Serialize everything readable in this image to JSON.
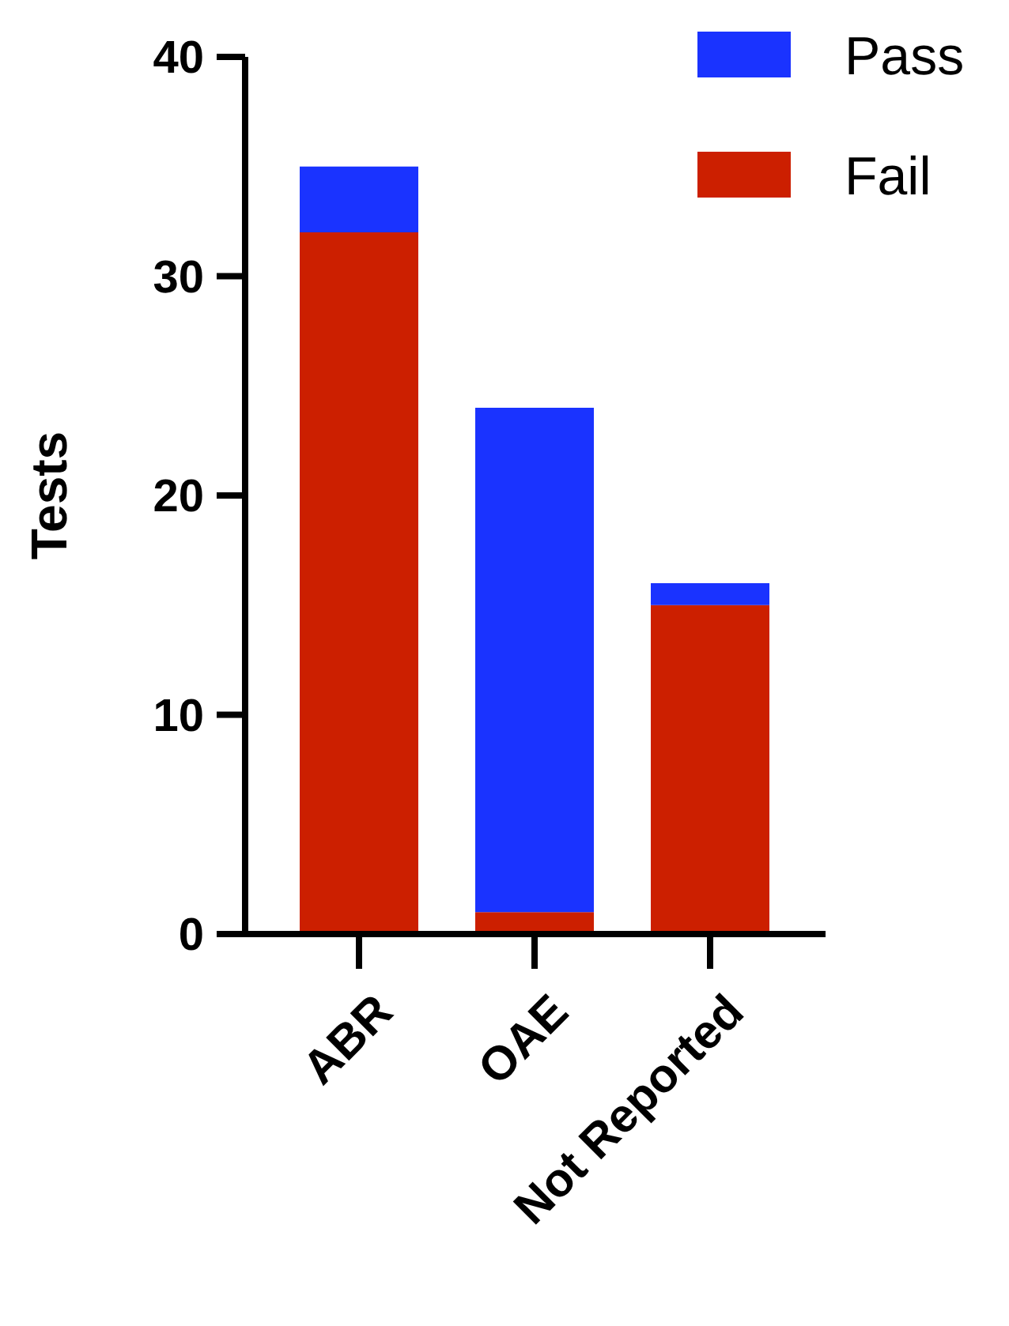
{
  "chart_data": {
    "type": "bar",
    "stacked": true,
    "ylabel": "Tests",
    "categories": [
      "ABR",
      "OAE",
      "Not Reported"
    ],
    "series": [
      {
        "name": "Fail",
        "color": "#cc1f00",
        "values": [
          32,
          1,
          15
        ]
      },
      {
        "name": "Pass",
        "color": "#1a33ff",
        "values": [
          3,
          23,
          1
        ]
      }
    ],
    "ylim": [
      0,
      40
    ],
    "yticks": [
      0,
      10,
      20,
      30,
      40
    ],
    "grid": false,
    "legend": "top right"
  }
}
